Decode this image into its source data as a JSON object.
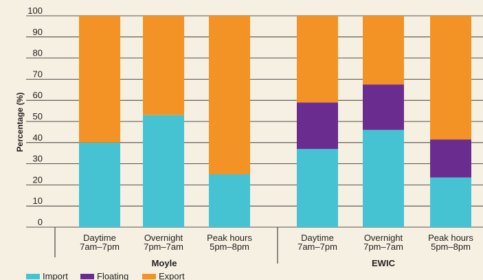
{
  "chart_data": {
    "type": "bar",
    "stacked": true,
    "ylabel": "Percentage (%)",
    "ylim": [
      0,
      100
    ],
    "yticks": [
      0,
      10,
      20,
      30,
      40,
      50,
      60,
      70,
      80,
      90,
      100
    ],
    "grid": true,
    "legend_position": "bottom-left",
    "groups": [
      "Moyle",
      "EWIC"
    ],
    "categories": [
      {
        "group": "Moyle",
        "line1": "Daytime",
        "line2": "7am–7pm"
      },
      {
        "group": "Moyle",
        "line1": "Overnight",
        "line2": "7pm–7am"
      },
      {
        "group": "Moyle",
        "line1": "Peak hours",
        "line2": "5pm–8pm"
      },
      {
        "group": "EWIC",
        "line1": "Daytime",
        "line2": "7am–7pm"
      },
      {
        "group": "EWIC",
        "line1": "Overnight",
        "line2": "7pm–7am"
      },
      {
        "group": "EWIC",
        "line1": "Peak hours",
        "line2": "5pm–8pm"
      }
    ],
    "series": [
      {
        "name": "Import",
        "color": "#45c3d3",
        "values": [
          40,
          53,
          25,
          37,
          46,
          23.5
        ]
      },
      {
        "name": "Floating",
        "color": "#6b2c8f",
        "values": [
          0,
          0,
          0,
          22,
          21.5,
          18
        ]
      },
      {
        "name": "Export",
        "color": "#f39325",
        "values": [
          60,
          47,
          75,
          41,
          32.5,
          58.5
        ]
      }
    ]
  }
}
